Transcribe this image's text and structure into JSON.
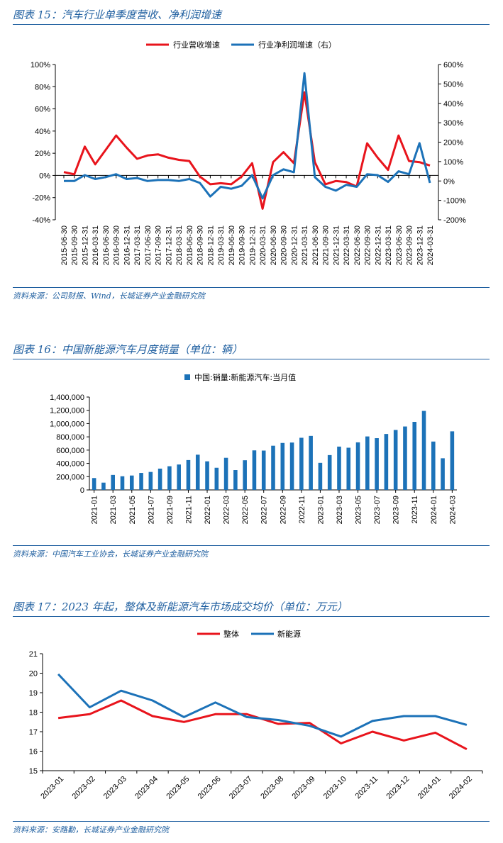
{
  "figures": [
    {
      "title": "图表 15：汽车行业单季度营收、净利润增速",
      "source": "资料来源：公司财报、Wind，长城证券产业金融研究院"
    },
    {
      "title": "图表 16：中国新能源汽车月度销量（单位：辆）",
      "source": "资料来源：中国汽车工业协会，长城证券产业金融研究院"
    },
    {
      "title": "图表 17：2023 年起，整体及新能源汽车市场成交均价（单位：万元）",
      "source": "资料来源：安路勤，长城证券产业金融研究院"
    }
  ],
  "colors": {
    "accent": "#1f5fa0",
    "red": "#e8141c",
    "blue": "#1c72b8"
  },
  "chart_data": [
    {
      "type": "line",
      "title": "",
      "x": [
        "2015-06-30",
        "2015-09-30",
        "2015-12-31",
        "2016-03-31",
        "2016-06-30",
        "2016-09-30",
        "2016-12-31",
        "2017-03-31",
        "2017-06-30",
        "2017-09-30",
        "2017-12-31",
        "2018-03-31",
        "2018-06-30",
        "2018-09-30",
        "2018-12-31",
        "2019-03-31",
        "2019-06-30",
        "2019-09-30",
        "2019-12-31",
        "2020-03-31",
        "2020-06-30",
        "2020-09-30",
        "2020-12-31",
        "2021-03-31",
        "2021-06-30",
        "2021-09-30",
        "2021-12-31",
        "2022-03-31",
        "2022-06-30",
        "2022-09-30",
        "2022-12-31",
        "2023-03-31",
        "2023-06-30",
        "2023-09-30",
        "2023-12-31",
        "2024-03-31"
      ],
      "series": [
        {
          "name": "行业营收增速",
          "axis": "left",
          "color": "#e8141c",
          "values": [
            3,
            1,
            26,
            10,
            23,
            36,
            25,
            15,
            18,
            19,
            16,
            14,
            13,
            -1,
            -8,
            -7,
            -8,
            -1,
            11,
            -30,
            12,
            21,
            11,
            75,
            12,
            -8,
            -5,
            -6,
            -10,
            29,
            16,
            5,
            36,
            13,
            12,
            9
          ]
        },
        {
          "name": "行业净利润增速（右）",
          "axis": "right",
          "color": "#1c72b8",
          "values": [
            0,
            0,
            30,
            10,
            20,
            35,
            10,
            15,
            0,
            5,
            5,
            0,
            10,
            -10,
            -80,
            -30,
            -40,
            -25,
            30,
            -90,
            30,
            60,
            45,
            555,
            20,
            -30,
            -50,
            -20,
            -30,
            35,
            30,
            -5,
            50,
            35,
            195,
            -10
          ]
        }
      ],
      "ylim_left": [
        -40,
        100
      ],
      "yticks_left": [
        "-40%",
        "-20%",
        "0%",
        "20%",
        "40%",
        "60%",
        "80%",
        "100%"
      ],
      "ylim_right": [
        -200,
        600
      ],
      "yticks_right": [
        "-200%",
        "-100%",
        "0%",
        "100%",
        "200%",
        "300%",
        "400%",
        "500%",
        "600%"
      ],
      "grid": false,
      "legend": "top-center"
    },
    {
      "type": "bar",
      "title": "",
      "series_name": "中国:销量:新能源汽车:当月值",
      "color": "#1c72b8",
      "categories": [
        "2021-01",
        "2021-02",
        "2021-03",
        "2021-04",
        "2021-05",
        "2021-06",
        "2021-07",
        "2021-08",
        "2021-09",
        "2021-10",
        "2021-11",
        "2021-12",
        "2022-01",
        "2022-02",
        "2022-03",
        "2022-04",
        "2022-05",
        "2022-06",
        "2022-07",
        "2022-08",
        "2022-09",
        "2022-10",
        "2022-11",
        "2022-12",
        "2023-01",
        "2023-02",
        "2023-03",
        "2023-04",
        "2023-05",
        "2023-06",
        "2023-07",
        "2023-08",
        "2023-09",
        "2023-10",
        "2023-11",
        "2023-12",
        "2024-01",
        "2024-02",
        "2024-03"
      ],
      "tick_labels": [
        "2021-01",
        "2021-03",
        "2021-05",
        "2021-07",
        "2021-09",
        "2021-11",
        "2022-01",
        "2022-03",
        "2022-05",
        "2022-07",
        "2022-09",
        "2022-11",
        "2023-01",
        "2023-03",
        "2023-05",
        "2023-07",
        "2023-09",
        "2023-11",
        "2024-01",
        "2024-03"
      ],
      "values": [
        179000,
        110000,
        226000,
        206000,
        217000,
        256000,
        271000,
        321000,
        357000,
        383000,
        450000,
        531000,
        431000,
        334000,
        484000,
        299000,
        447000,
        596000,
        593000,
        666000,
        708000,
        714000,
        786000,
        814000,
        408000,
        525000,
        653000,
        636000,
        717000,
        806000,
        780000,
        843000,
        904000,
        956000,
        1026000,
        1191000,
        729000,
        477000,
        883000
      ],
      "ylim": [
        0,
        1400000
      ],
      "yticks": [
        "0",
        "200,000",
        "400,000",
        "600,000",
        "800,000",
        "1,000,000",
        "1,200,000",
        "1,400,000"
      ],
      "grid": false,
      "legend": "top-center"
    },
    {
      "type": "line",
      "title": "",
      "x": [
        "2023-01",
        "2023-02",
        "2023-03",
        "2023-04",
        "2023-05",
        "2023-06",
        "2023-07",
        "2023-08",
        "2023-09",
        "2023-10",
        "2023-11",
        "2023-12",
        "2024-01",
        "2024-02"
      ],
      "series": [
        {
          "name": "整体",
          "color": "#e8141c",
          "values": [
            17.7,
            17.9,
            18.6,
            17.8,
            17.5,
            17.9,
            17.9,
            17.4,
            17.45,
            16.4,
            17.0,
            16.55,
            16.95,
            16.1
          ]
        },
        {
          "name": "新能源",
          "color": "#1c72b8",
          "values": [
            19.95,
            18.25,
            19.1,
            18.6,
            17.75,
            18.5,
            17.75,
            17.6,
            17.3,
            16.75,
            17.55,
            17.8,
            17.8,
            17.35
          ]
        }
      ],
      "ylim": [
        15,
        21
      ],
      "yticks": [
        "15",
        "16",
        "17",
        "18",
        "19",
        "20",
        "21"
      ],
      "grid": false,
      "legend": "top-center"
    }
  ]
}
